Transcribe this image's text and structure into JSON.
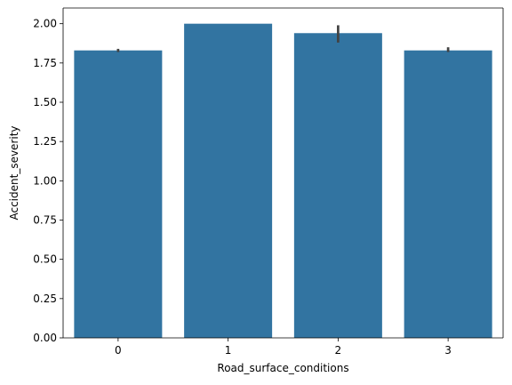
{
  "chart_data": {
    "type": "bar",
    "categories": [
      "0",
      "1",
      "2",
      "3"
    ],
    "values": [
      1.83,
      2.0,
      1.94,
      1.83
    ],
    "error_bars": [
      [
        1.82,
        1.84
      ],
      [
        2.0,
        2.0
      ],
      [
        1.88,
        1.99
      ],
      [
        1.82,
        1.85
      ]
    ],
    "title": "",
    "xlabel": "Road_surface_conditions",
    "ylabel": "Accident_severity",
    "ylim": [
      0,
      2.1
    ],
    "yticks": [
      "0.00",
      "0.25",
      "0.50",
      "0.75",
      "1.00",
      "1.25",
      "1.50",
      "1.75",
      "2.00"
    ],
    "grid": false,
    "bar_color": "#3274a1",
    "errorbar_color": "#424242"
  }
}
